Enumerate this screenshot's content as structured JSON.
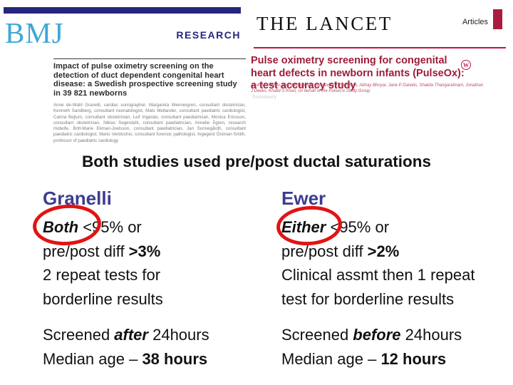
{
  "slide": {
    "title": "Both studies used pre/post ductal saturations"
  },
  "bmj_clip": {
    "logo": "BMJ",
    "research_label": "RESEARCH",
    "paper_title": "Impact of pulse oximetry screening on the detection of duct dependent congenital heart disease: a Swedish prospective screening study in 39 821 newborns",
    "authors": "Anne de-Wahl Granelli, cardiac sonographer, Margareta Wennergren, consultant obstetrician, Kenneth Sandberg, consultant neonatologist, Mats Mellander, consultant paediatric cardiologist, Carina Bejlum, consultant obstetrician, Leif Inganäs, consultant paediatrician, Monica Ericsson, consultant obstetrician, Niklas Segerdahl, consultant paediatrician, Annelie Ågren, research midwife, Britt-Marie Ekman-Joelsson, consultant paediatrician, Jan Sunnegårdh, consultant paediatric cardiologist, Mario Verdicchio, consultant forensic pathologist, Ingegerd Östman-Smith, professor of paediatric cardiology"
  },
  "lancet_clip": {
    "masthead": "THE LANCET",
    "articles_label": "Articles",
    "paper_title": "Pulse oximetry screening for congenital heart defects in newborn infants (PulseOx): a test accuracy study",
    "crossmark_glyph": "W",
    "authors": "Andrew K Ewer, Lee J Middleton, Alexandra T Furmston, Abhay Bhoyar, Jane P Daniels, Shakila Thangaratinam, Jonathan J Deeks, Khalid S Khan, on behalf of the PulseOx Study Group",
    "summary_label": "Summary"
  },
  "studies": [
    {
      "heading": "Granelli",
      "criteria_emph": "Both",
      "criteria_rest": " <95% or",
      "line2_pre": "pre/post diff ",
      "line2_bold": ">3%",
      "line3": "2 repeat tests for",
      "line4": "borderline results",
      "screened_pre": "Screened ",
      "screened_emph": "after",
      "screened_post": " 24hours",
      "median_pre": "Median age – ",
      "median_bold": "38 hours"
    },
    {
      "heading": "Ewer",
      "criteria_emph": "Either",
      "criteria_rest": " <95% or",
      "line2_pre": "pre/post diff ",
      "line2_bold": ">2%",
      "line3": "Clinical assmt then 1 repeat",
      "line4": "test for borderline results",
      "screened_pre": "Screened ",
      "screened_emph": "before",
      "screened_post": " 24hours",
      "median_pre": "Median age – ",
      "median_bold": "12 hours"
    }
  ],
  "colors": {
    "navy": "#26267e",
    "bmj_blue": "#3fa7d6",
    "lancet_crimson": "#a91c40",
    "lancet_line": "#c01546",
    "lancet_title": "#9e1c38",
    "heading_blue": "#3d3d8e",
    "ellipse_red": "#e21313"
  }
}
